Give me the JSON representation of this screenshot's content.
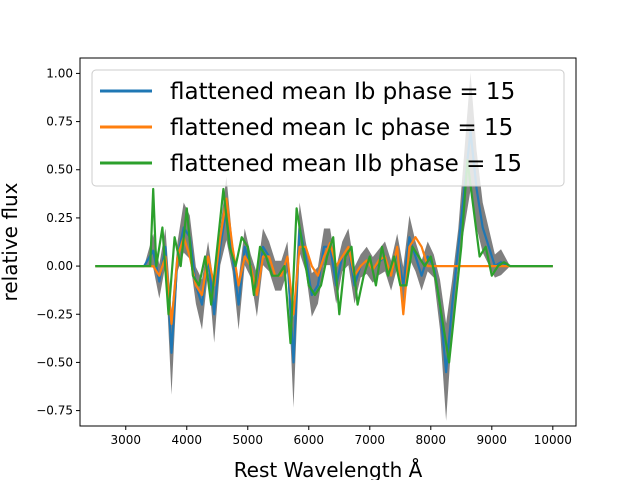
{
  "chart_data": {
    "type": "line",
    "title": "",
    "xlabel": "Rest Wavelength Å",
    "ylabel": "relative flux",
    "xlim": [
      2250,
      10380
    ],
    "ylim": [
      -0.83,
      1.08
    ],
    "xticks": [
      3000,
      4000,
      5000,
      6000,
      7000,
      8000,
      9000,
      10000
    ],
    "xtick_labels": [
      "3000",
      "4000",
      "5000",
      "6000",
      "7000",
      "8000",
      "9000",
      "10000"
    ],
    "yticks": [
      -0.75,
      -0.5,
      -0.25,
      0.0,
      0.25,
      0.5,
      0.75,
      1.0
    ],
    "ytick_labels": [
      "−0.75",
      "−0.50",
      "−0.25",
      "0.00",
      "0.25",
      "0.50",
      "0.75",
      "1.00"
    ],
    "grid": false,
    "legend_position": "top",
    "series": [
      {
        "name": "flattened mean Ib phase = 15",
        "color": "#1f77b4",
        "band_color": "#000000",
        "band_opacity": 0.5,
        "x": [
          2500,
          3300,
          3450,
          3550,
          3650,
          3750,
          3850,
          3950,
          4050,
          4150,
          4250,
          4350,
          4450,
          4550,
          4650,
          4750,
          4850,
          4950,
          5050,
          5150,
          5250,
          5350,
          5450,
          5550,
          5650,
          5750,
          5850,
          5950,
          6050,
          6150,
          6250,
          6350,
          6450,
          6550,
          6650,
          6750,
          6850,
          6950,
          7050,
          7150,
          7250,
          7350,
          7450,
          7550,
          7650,
          7750,
          7850,
          7950,
          8050,
          8150,
          8250,
          8350,
          8450,
          8550,
          8650,
          8750,
          8850,
          8950,
          9050,
          9150,
          9300,
          10000
        ],
        "values": [
          0.0,
          0.0,
          0.08,
          -0.08,
          0.1,
          -0.45,
          0.05,
          0.2,
          0.15,
          -0.1,
          -0.2,
          0.05,
          -0.25,
          0.1,
          0.3,
          0.05,
          -0.2,
          0.1,
          0.0,
          -0.15,
          0.1,
          0.05,
          -0.05,
          -0.05,
          0.05,
          -0.5,
          0.2,
          0.05,
          -0.15,
          -0.1,
          0.1,
          0.1,
          -0.1,
          0.05,
          0.1,
          -0.1,
          0.0,
          0.03,
          -0.02,
          0.02,
          0.05,
          -0.05,
          0.08,
          -0.1,
          0.15,
          0.05,
          -0.05,
          0.05,
          0.0,
          -0.2,
          -0.55,
          -0.2,
          0.1,
          0.4,
          0.7,
          0.4,
          0.2,
          0.1,
          0.0,
          0.02,
          0.0,
          0.0
        ]
      },
      {
        "name": "flattened mean Ic phase = 15",
        "color": "#ff7f0e",
        "x": [
          2500,
          3450,
          3550,
          3650,
          3750,
          3850,
          3950,
          4050,
          4150,
          4250,
          4350,
          4450,
          4550,
          4650,
          4750,
          4850,
          4950,
          5050,
          5150,
          5250,
          5350,
          5450,
          5550,
          5650,
          5750,
          5850,
          5950,
          6050,
          6150,
          6250,
          6350,
          6450,
          6550,
          6650,
          6750,
          6850,
          6950,
          7050,
          7150,
          7250,
          7350,
          7450,
          7550,
          7650,
          7750,
          7850,
          7950,
          8000,
          10000
        ],
        "values": [
          0.0,
          0.0,
          -0.05,
          0.05,
          -0.3,
          0.05,
          0.15,
          0.05,
          -0.1,
          -0.15,
          0.05,
          -0.1,
          0.15,
          0.35,
          0.1,
          -0.1,
          0.05,
          0.0,
          -0.15,
          0.05,
          0.05,
          -0.05,
          -0.05,
          0.05,
          -0.25,
          0.1,
          0.1,
          0.0,
          -0.05,
          0.05,
          0.12,
          0.0,
          0.05,
          0.1,
          -0.05,
          0.0,
          0.03,
          -0.02,
          0.03,
          0.05,
          -0.05,
          0.1,
          -0.25,
          0.1,
          0.15,
          0.1,
          0.0,
          0.0,
          0.0
        ]
      },
      {
        "name": "flattened mean IIb phase = 15",
        "color": "#2ca02c",
        "x": [
          2500,
          3400,
          3450,
          3500,
          3600,
          3700,
          3800,
          3900,
          4000,
          4100,
          4200,
          4300,
          4400,
          4500,
          4600,
          4700,
          4800,
          4900,
          5000,
          5100,
          5200,
          5300,
          5400,
          5500,
          5600,
          5700,
          5800,
          5900,
          6000,
          6100,
          6200,
          6300,
          6400,
          6500,
          6600,
          6700,
          6800,
          6900,
          7000,
          7100,
          7200,
          7300,
          7400,
          7500,
          7600,
          7700,
          7800,
          7900,
          8000,
          8100,
          8200,
          8300,
          8400,
          8500,
          8600,
          8700,
          8800,
          8900,
          9000,
          9100,
          9200,
          9300,
          10000
        ],
        "values": [
          0.0,
          0.0,
          0.4,
          0.0,
          0.2,
          -0.25,
          0.15,
          0.0,
          0.3,
          -0.05,
          -0.1,
          0.05,
          -0.2,
          0.1,
          0.4,
          0.1,
          0.0,
          0.15,
          0.1,
          -0.15,
          0.1,
          0.05,
          -0.05,
          -0.05,
          0.0,
          -0.4,
          0.3,
          0.1,
          -0.1,
          -0.15,
          -0.1,
          0.05,
          0.15,
          -0.25,
          0.05,
          0.1,
          -0.2,
          -0.05,
          0.05,
          -0.1,
          0.1,
          -0.05,
          0.05,
          -0.1,
          -0.1,
          0.1,
          0.05,
          0.0,
          0.05,
          -0.1,
          -0.3,
          -0.5,
          -0.2,
          0.1,
          0.55,
          0.3,
          0.05,
          0.1,
          -0.05,
          0.0,
          0.02,
          0.0,
          0.0
        ]
      }
    ]
  }
}
